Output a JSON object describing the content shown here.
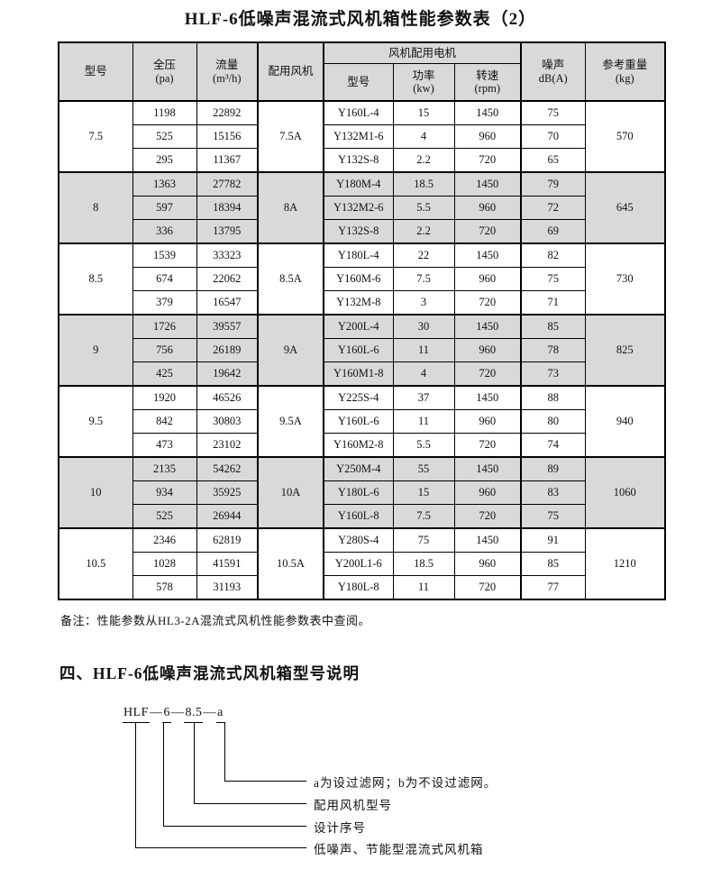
{
  "title": "HLF-6低噪声混流式风机箱性能参数表（2）",
  "table": {
    "headers": {
      "model": "型号",
      "pressure": [
        "全压",
        "(pa)"
      ],
      "flow": [
        "流量",
        "(m³/h)"
      ],
      "fan": "配用风机",
      "motor_group": "风机配用电机",
      "motor_model": "型号",
      "power": [
        "功率",
        "(kw)"
      ],
      "speed": [
        "转速",
        "(rpm)"
      ],
      "noise": [
        "噪声",
        "dB(A)"
      ],
      "weight": [
        "参考重量",
        "(kg)"
      ]
    },
    "groups": [
      {
        "model": "7.5",
        "fan": "7.5A",
        "weight": "570",
        "shaded": false,
        "rows": [
          {
            "pressure": "1198",
            "flow": "22892",
            "motor_model": "Y160L-4",
            "power": "15",
            "speed": "1450",
            "noise": "75"
          },
          {
            "pressure": "525",
            "flow": "15156",
            "motor_model": "Y132M1-6",
            "power": "4",
            "speed": "960",
            "noise": "70"
          },
          {
            "pressure": "295",
            "flow": "11367",
            "motor_model": "Y132S-8",
            "power": "2.2",
            "speed": "720",
            "noise": "65"
          }
        ]
      },
      {
        "model": "8",
        "fan": "8A",
        "weight": "645",
        "shaded": true,
        "rows": [
          {
            "pressure": "1363",
            "flow": "27782",
            "motor_model": "Y180M-4",
            "power": "18.5",
            "speed": "1450",
            "noise": "79"
          },
          {
            "pressure": "597",
            "flow": "18394",
            "motor_model": "Y132M2-6",
            "power": "5.5",
            "speed": "960",
            "noise": "72"
          },
          {
            "pressure": "336",
            "flow": "13795",
            "motor_model": "Y132S-8",
            "power": "2.2",
            "speed": "720",
            "noise": "69"
          }
        ]
      },
      {
        "model": "8.5",
        "fan": "8.5A",
        "weight": "730",
        "shaded": false,
        "rows": [
          {
            "pressure": "1539",
            "flow": "33323",
            "motor_model": "Y180L-4",
            "power": "22",
            "speed": "1450",
            "noise": "82"
          },
          {
            "pressure": "674",
            "flow": "22062",
            "motor_model": "Y160M-6",
            "power": "7.5",
            "speed": "960",
            "noise": "75"
          },
          {
            "pressure": "379",
            "flow": "16547",
            "motor_model": "Y132M-8",
            "power": "3",
            "speed": "720",
            "noise": "71"
          }
        ]
      },
      {
        "model": "9",
        "fan": "9A",
        "weight": "825",
        "shaded": true,
        "rows": [
          {
            "pressure": "1726",
            "flow": "39557",
            "motor_model": "Y200L-4",
            "power": "30",
            "speed": "1450",
            "noise": "85"
          },
          {
            "pressure": "756",
            "flow": "26189",
            "motor_model": "Y160L-6",
            "power": "11",
            "speed": "960",
            "noise": "78"
          },
          {
            "pressure": "425",
            "flow": "19642",
            "motor_model": "Y160M1-8",
            "power": "4",
            "speed": "720",
            "noise": "73"
          }
        ]
      },
      {
        "model": "9.5",
        "fan": "9.5A",
        "weight": "940",
        "shaded": false,
        "rows": [
          {
            "pressure": "1920",
            "flow": "46526",
            "motor_model": "Y225S-4",
            "power": "37",
            "speed": "1450",
            "noise": "88"
          },
          {
            "pressure": "842",
            "flow": "30803",
            "motor_model": "Y160L-6",
            "power": "11",
            "speed": "960",
            "noise": "80"
          },
          {
            "pressure": "473",
            "flow": "23102",
            "motor_model": "Y160M2-8",
            "power": "5.5",
            "speed": "720",
            "noise": "74"
          }
        ]
      },
      {
        "model": "10",
        "fan": "10A",
        "weight": "1060",
        "shaded": true,
        "rows": [
          {
            "pressure": "2135",
            "flow": "54262",
            "motor_model": "Y250M-4",
            "power": "55",
            "speed": "1450",
            "noise": "89"
          },
          {
            "pressure": "934",
            "flow": "35925",
            "motor_model": "Y180L-6",
            "power": "15",
            "speed": "960",
            "noise": "83"
          },
          {
            "pressure": "525",
            "flow": "26944",
            "motor_model": "Y160L-8",
            "power": "7.5",
            "speed": "720",
            "noise": "75"
          }
        ]
      },
      {
        "model": "10.5",
        "fan": "10.5A",
        "weight": "1210",
        "shaded": false,
        "rows": [
          {
            "pressure": "2346",
            "flow": "62819",
            "motor_model": "Y280S-4",
            "power": "75",
            "speed": "1450",
            "noise": "91"
          },
          {
            "pressure": "1028",
            "flow": "41591",
            "motor_model": "Y200L1-6",
            "power": "18.5",
            "speed": "960",
            "noise": "85"
          },
          {
            "pressure": "578",
            "flow": "31193",
            "motor_model": "Y180L-8",
            "power": "11",
            "speed": "720",
            "noise": "77"
          }
        ]
      }
    ]
  },
  "note": "备注：性能参数从HL3-2A混流式风机性能参数表中查阅。",
  "section_heading": "四、HLF-6低噪声混流式风机箱型号说明",
  "diagram": {
    "dash": "—",
    "tokens": {
      "series": "HLF",
      "design": "6",
      "size": "8.5",
      "suffix": "a"
    },
    "labels": {
      "filter": "a为设过滤网；b为不设过滤网。",
      "fan_model": "配用风机型号",
      "design_serial": "设计序号",
      "box_type": "低噪声、节能型混流式风机箱"
    }
  }
}
